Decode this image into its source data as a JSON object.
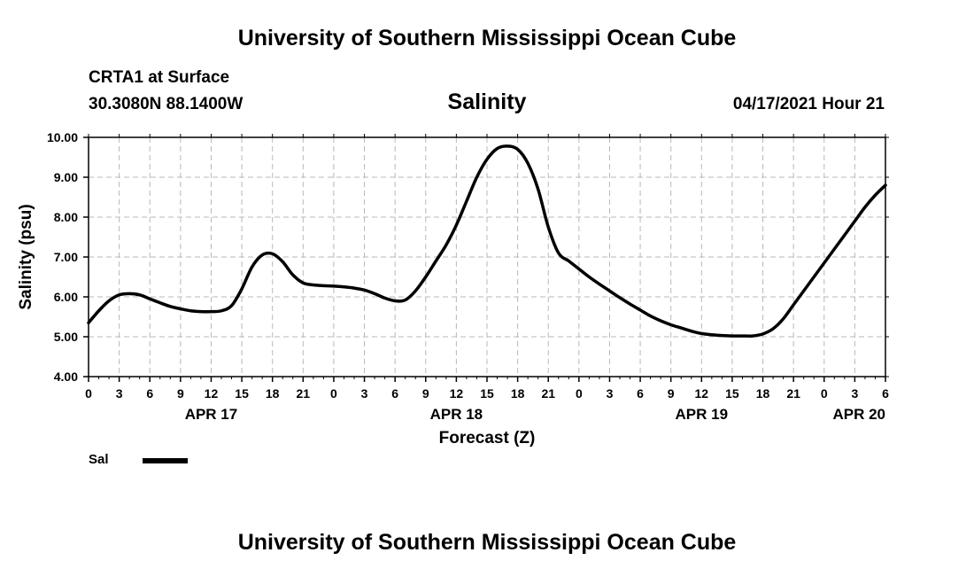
{
  "header": {
    "org_title": "University of Southern Mississippi Ocean Cube",
    "station": "CRTA1 at Surface",
    "coordinates": "30.3080N  88.1400W",
    "datetime": "04/17/2021 Hour 21"
  },
  "footer": {
    "org_title": "University of Southern Mississippi Ocean Cube"
  },
  "legend": {
    "label": "Sal"
  },
  "colors": {
    "line": "#000000",
    "grid": "#b8b8b8",
    "background": "#ffffff"
  },
  "chart_data": {
    "type": "line",
    "title": "Salinity",
    "xlabel": "Forecast (Z)",
    "ylabel": "Salinity (psu)",
    "xlim": [
      0,
      78
    ],
    "ylim": [
      4.0,
      10.0
    ],
    "x_unit": "hours from 04/17 00Z",
    "grid": true,
    "x_tick_values": [
      0,
      3,
      6,
      9,
      12,
      15,
      18,
      21,
      24,
      27,
      30,
      33,
      36,
      39,
      42,
      45,
      48,
      51,
      54,
      57,
      60,
      63,
      66,
      69,
      72,
      75,
      78
    ],
    "x_tick_labels": [
      "0",
      "3",
      "6",
      "9",
      "12",
      "15",
      "18",
      "21",
      "0",
      "3",
      "6",
      "9",
      "12",
      "15",
      "18",
      "21",
      "0",
      "3",
      "6",
      "9",
      "12",
      "15",
      "18",
      "21",
      "0",
      "3",
      "6"
    ],
    "y_tick_values": [
      4,
      5,
      6,
      7,
      8,
      9,
      10
    ],
    "y_tick_labels": [
      "4.00",
      "5.00",
      "6.00",
      "7.00",
      "8.00",
      "9.00",
      "10.00"
    ],
    "day_labels": [
      {
        "x": 12,
        "label": "APR 17"
      },
      {
        "x": 36,
        "label": "APR 18"
      },
      {
        "x": 60,
        "label": "APR 19"
      },
      {
        "x": 78,
        "label": "APR 20"
      }
    ],
    "series": [
      {
        "name": "Sal",
        "x": [
          0,
          1,
          2,
          3,
          4,
          5,
          6,
          7,
          8,
          9,
          10,
          11,
          12,
          13,
          14,
          15,
          16,
          17,
          18,
          19,
          20,
          21,
          22,
          23,
          24,
          25,
          26,
          27,
          28,
          29,
          30,
          31,
          32,
          33,
          34,
          35,
          36,
          37,
          38,
          39,
          40,
          41,
          42,
          43,
          44,
          45,
          46,
          47,
          48,
          49,
          50,
          51,
          52,
          53,
          54,
          55,
          56,
          57,
          58,
          59,
          60,
          61,
          62,
          63,
          64,
          65,
          66,
          67,
          68,
          69,
          70,
          71,
          72,
          73,
          74,
          75,
          76,
          77,
          78
        ],
        "values": [
          5.35,
          5.65,
          5.9,
          6.05,
          6.08,
          6.05,
          5.95,
          5.85,
          5.76,
          5.7,
          5.65,
          5.63,
          5.63,
          5.65,
          5.78,
          6.2,
          6.75,
          7.05,
          7.08,
          6.88,
          6.55,
          6.35,
          6.3,
          6.28,
          6.27,
          6.25,
          6.22,
          6.17,
          6.08,
          5.97,
          5.9,
          5.92,
          6.15,
          6.5,
          6.9,
          7.3,
          7.8,
          8.4,
          9.0,
          9.45,
          9.72,
          9.78,
          9.7,
          9.35,
          8.7,
          7.75,
          7.1,
          6.9,
          6.7,
          6.5,
          6.32,
          6.15,
          5.98,
          5.82,
          5.67,
          5.52,
          5.4,
          5.3,
          5.22,
          5.14,
          5.08,
          5.05,
          5.03,
          5.02,
          5.02,
          5.02,
          5.07,
          5.2,
          5.45,
          5.8,
          6.15,
          6.5,
          6.85,
          7.2,
          7.55,
          7.9,
          8.25,
          8.55,
          8.8
        ]
      }
    ]
  }
}
